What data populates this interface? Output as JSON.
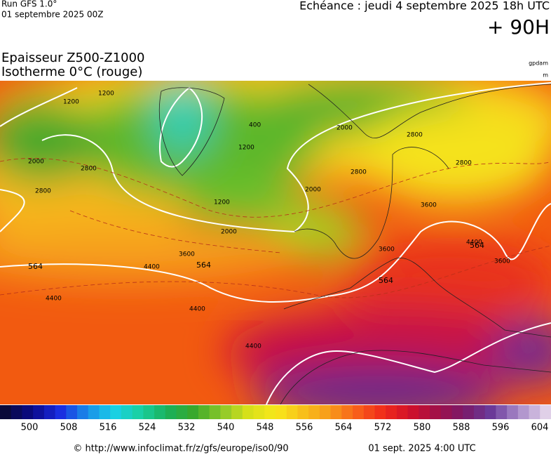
{
  "header": {
    "model": "Run GFS 1.0°",
    "run_date": "01 septembre 2025 00Z",
    "valid": "Echéance : jeudi 4 septembre 2025 18h UTC",
    "lead": "+ 90H"
  },
  "title": {
    "line1": "Epaisseur Z500-Z1000",
    "line2": "Isotherme 0°C (rouge)",
    "unit1": "gpdam",
    "unit2": "m"
  },
  "contour_labels": [
    "1200",
    "1200",
    "2000",
    "2800",
    "2800",
    "400",
    "1200",
    "2000",
    "2800",
    "2800",
    "2000",
    "1200",
    "2000",
    "3600",
    "3600",
    "4400",
    "564",
    "564",
    "564",
    "4400",
    "4400",
    "4400",
    "3600",
    "564",
    "4400",
    "3600",
    "2800"
  ],
  "colorbar": {
    "ticks": [
      500,
      508,
      516,
      524,
      532,
      540,
      548,
      556,
      564,
      572,
      580,
      588,
      596,
      604
    ],
    "range": [
      500,
      604
    ]
  },
  "footer": {
    "url": "© http://www.infoclimat.fr/z/gfs/europe/iso0/90",
    "issued": "01 sept. 2025  4:00 UTC"
  }
}
